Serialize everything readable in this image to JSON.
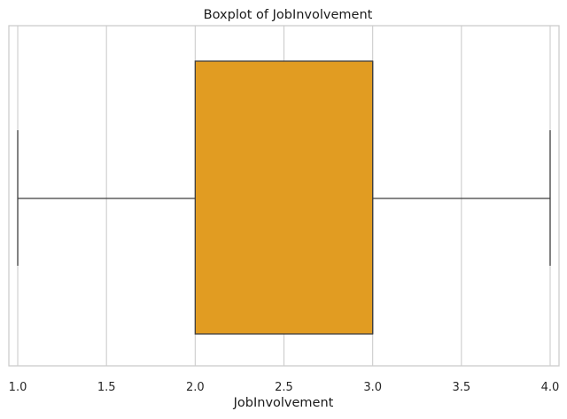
{
  "chart_data": {
    "type": "boxplot",
    "title": "Boxplot of JobInvolvement",
    "xlabel": "JobInvolvement",
    "ylabel": "",
    "orientation": "horizontal",
    "xlim": [
      0.95,
      4.05
    ],
    "xticks": [
      1.0,
      1.5,
      2.0,
      2.5,
      3.0,
      3.5,
      4.0
    ],
    "xtick_labels": [
      "1.0",
      "1.5",
      "2.0",
      "2.5",
      "3.0",
      "3.5",
      "4.0"
    ],
    "grid": "vertical",
    "box": {
      "whisker_low": 1.0,
      "q1": 2.0,
      "median": 3.0,
      "q3": 3.0,
      "whisker_high": 4.0
    },
    "colors": {
      "box_fill": "#e19c22",
      "line": "#3f3f3f",
      "grid": "#cccccc",
      "frame": "#cccccc"
    }
  }
}
